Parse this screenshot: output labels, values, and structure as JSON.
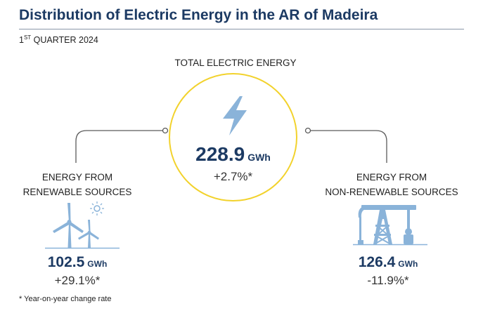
{
  "header": {
    "title": "Distribution of Electric Energy in the AR of Madeira",
    "subtitle_number": "1",
    "subtitle_superscript": "ST",
    "subtitle_rest": " QUARTER 2024"
  },
  "total": {
    "label": "TOTAL ELECTRIC ENERGY",
    "value": "228.9",
    "unit": "GWh",
    "change": "+2.7%*",
    "icon": "lightning-bolt-icon"
  },
  "renewable": {
    "label_line1": "ENERGY FROM",
    "label_line2": "RENEWABLE SOURCES",
    "value": "102.5",
    "unit": "GWh",
    "change": "+29.1%*",
    "icon": "wind-turbines-sun-icon"
  },
  "non_renewable": {
    "label_line1": "ENERGY FROM",
    "label_line2": "NON-RENEWABLE SOURCES",
    "value": "126.4",
    "unit": "GWh",
    "change": "-11.9%*",
    "icon": "oil-pumpjack-icon"
  },
  "footnote": "* Year-on-year change rate",
  "colors": {
    "title": "#1c3a63",
    "ring": "#f2d22c",
    "icon": "#8ab3d9",
    "connector": "#5a5a5a"
  }
}
